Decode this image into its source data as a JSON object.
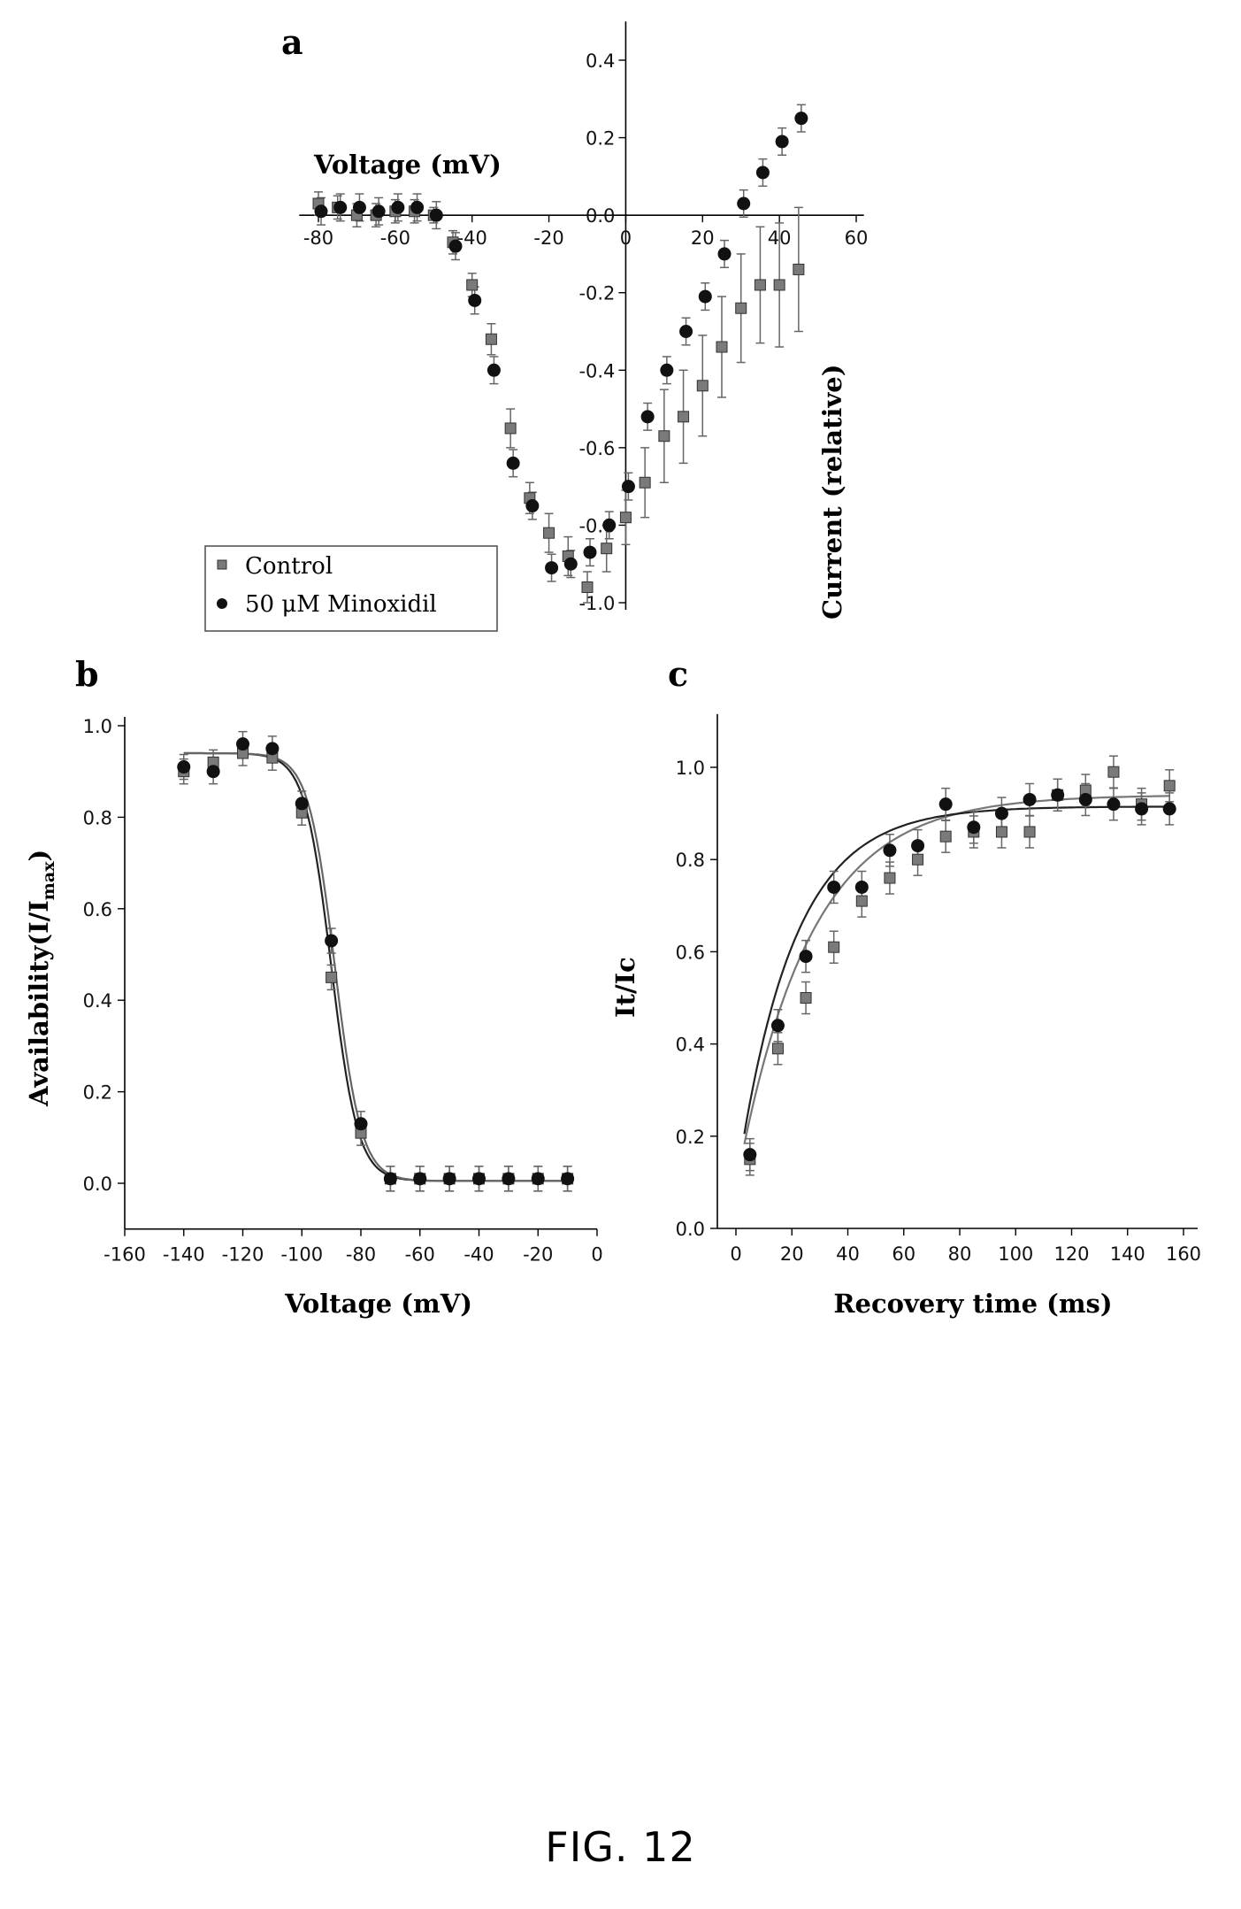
{
  "figure_caption": "FIG. 12",
  "chart_data": [
    {
      "panel": "a",
      "type": "scatter",
      "xlabel": "Voltage (mV)",
      "ylabel": "Current (relative)",
      "xlim": [
        -85,
        62
      ],
      "ylim": [
        -1.0,
        0.5
      ],
      "xticks": [
        "-80",
        "-60",
        "-40",
        "-20",
        "0",
        "20",
        "40",
        "60"
      ],
      "yticks": [
        "0.4",
        "0.2",
        "0.0",
        "-0.2",
        "-0.4",
        "-0.6",
        "-0.8",
        "-1.0"
      ],
      "legend_placement": "bottom-left",
      "grid": false,
      "series": [
        {
          "name": "Control",
          "marker": "square",
          "color": "#7a7a7a",
          "x": [
            -80,
            -75,
            -70,
            -65,
            -60,
            -55,
            -50,
            -45,
            -40,
            -35,
            -30,
            -25,
            -20,
            -15,
            -10,
            -5,
            0,
            5,
            10,
            15,
            20,
            25,
            30,
            35,
            40,
            45
          ],
          "y": [
            0.03,
            0.02,
            0.0,
            0.0,
            0.01,
            0.01,
            0.0,
            -0.07,
            -0.18,
            -0.32,
            -0.55,
            -0.73,
            -0.82,
            -0.88,
            -0.96,
            -0.86,
            -0.78,
            -0.69,
            -0.57,
            -0.52,
            -0.44,
            -0.34,
            -0.24,
            -0.18,
            -0.18,
            -0.14
          ],
          "err": [
            0.03,
            0.03,
            0.03,
            0.03,
            0.03,
            0.03,
            0.02,
            0.03,
            0.03,
            0.04,
            0.05,
            0.04,
            0.05,
            0.05,
            0.04,
            0.06,
            0.07,
            0.09,
            0.12,
            0.12,
            0.13,
            0.13,
            0.14,
            0.15,
            0.16,
            0.16
          ]
        },
        {
          "name": "50 μM Minoxidil",
          "marker": "circle",
          "color": "#111111",
          "x": [
            -80,
            -75,
            -70,
            -65,
            -60,
            -55,
            -50,
            -45,
            -40,
            -35,
            -30,
            -25,
            -20,
            -15,
            -10,
            -5,
            0,
            5,
            10,
            15,
            20,
            25,
            30,
            35,
            40,
            45
          ],
          "y": [
            0.01,
            0.02,
            0.02,
            0.01,
            0.02,
            0.02,
            0.0,
            -0.08,
            -0.22,
            -0.4,
            -0.64,
            -0.75,
            -0.91,
            -0.9,
            -0.87,
            -0.8,
            -0.7,
            -0.52,
            -0.4,
            -0.3,
            -0.21,
            -0.1,
            0.03,
            0.11,
            0.19,
            0.25
          ]
        }
      ]
    },
    {
      "panel": "b",
      "type": "scatter",
      "xlabel": "Voltage (mV)",
      "ylabel": "Availability(I/I",
      "ylabel_sub": "max",
      "ylabel_end": ")",
      "xlim": [
        -160,
        0
      ],
      "ylim": [
        -0.1,
        1.0
      ],
      "xticks": [
        "-160",
        "-140",
        "-120",
        "-100",
        "-80",
        "-60",
        "-40",
        "-20",
        "0"
      ],
      "yticks": [
        "1.0",
        "0.8",
        "0.6",
        "0.4",
        "0.2",
        "0.0"
      ],
      "grid": false,
      "series": [
        {
          "name": "Control",
          "marker": "square",
          "color": "#7a7a7a",
          "x": [
            -140,
            -130,
            -120,
            -110,
            -100,
            -90,
            -80,
            -70,
            -60,
            -50,
            -40,
            -30,
            -20,
            -10
          ],
          "y": [
            0.9,
            0.92,
            0.94,
            0.93,
            0.81,
            0.45,
            0.11,
            0.01,
            0.01,
            0.01,
            0.01,
            0.01,
            0.01,
            0.01
          ]
        },
        {
          "name": "50 μM Minoxidil",
          "marker": "circle",
          "color": "#111111",
          "x": [
            -140,
            -130,
            -120,
            -110,
            -100,
            -90,
            -80,
            -70,
            -60,
            -50,
            -40,
            -30,
            -20,
            -10
          ],
          "y": [
            0.91,
            0.9,
            0.96,
            0.95,
            0.83,
            0.53,
            0.13,
            0.01,
            0.01,
            0.01,
            0.01,
            0.01,
            0.01,
            0.01
          ]
        }
      ],
      "fit": {
        "top": 0.94,
        "bottom": 0.005,
        "v_half": -90,
        "slope": 4.5
      }
    },
    {
      "panel": "c",
      "type": "scatter",
      "xlabel": "Recovery time (ms)",
      "ylabel": "It/Ic",
      "xlim": [
        -7,
        160
      ],
      "ylim": [
        0.0,
        1.1
      ],
      "xticks": [
        "0",
        "20",
        "40",
        "60",
        "80",
        "100",
        "120",
        "140",
        "160"
      ],
      "yticks": [
        "1.0",
        "0.8",
        "0.6",
        "0.4",
        "0.2",
        "0.0"
      ],
      "grid": false,
      "series": [
        {
          "name": "Control",
          "marker": "square",
          "color": "#7a7a7a",
          "x": [
            5,
            15,
            25,
            35,
            45,
            55,
            65,
            75,
            85,
            95,
            105,
            115,
            125,
            135,
            145,
            155
          ],
          "y": [
            0.15,
            0.39,
            0.5,
            0.61,
            0.71,
            0.76,
            0.8,
            0.85,
            0.86,
            0.86,
            0.86,
            0.94,
            0.95,
            0.99,
            0.92,
            0.96
          ],
          "fit": {
            "top": 0.94,
            "tau": 26,
            "t0": 0,
            "start": 0.09
          }
        },
        {
          "name": "50 μM Minoxidil",
          "marker": "circle",
          "color": "#111111",
          "x": [
            5,
            15,
            25,
            35,
            45,
            55,
            65,
            75,
            85,
            95,
            105,
            115,
            125,
            135,
            145,
            155
          ],
          "y": [
            0.16,
            0.44,
            0.59,
            0.74,
            0.74,
            0.82,
            0.83,
            0.92,
            0.87,
            0.9,
            0.93,
            0.94,
            0.93,
            0.92,
            0.91,
            0.91
          ],
          "fit": {
            "top": 0.915,
            "tau": 20,
            "t0": 0,
            "start": 0.09
          }
        }
      ]
    }
  ]
}
